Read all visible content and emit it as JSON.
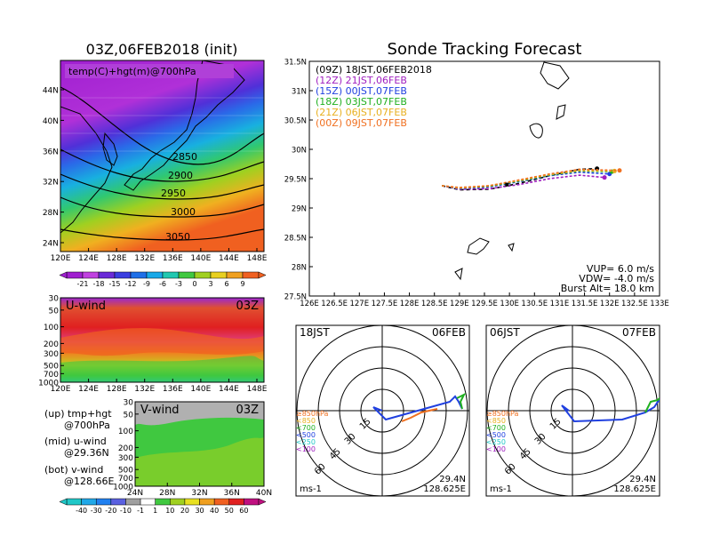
{
  "left": {
    "title": "03Z,06FEB2018 (init)",
    "map_label": "temp(C)+hgt(m)@700hPa",
    "contour_labels": [
      "2850",
      "2900",
      "2950",
      "3000",
      "3050"
    ],
    "lat_ticks": [
      "44N",
      "40N",
      "36N",
      "32N",
      "28N",
      "24N"
    ],
    "lon_ticks": [
      "120E",
      "124E",
      "128E",
      "132E",
      "136E",
      "140E",
      "144E",
      "148E"
    ],
    "temp_colorbar": {
      "labels": [
        "-21",
        "-18",
        "-15",
        "-12",
        "-9",
        "-6",
        "-3",
        "0",
        "3",
        "6",
        "9"
      ],
      "colors": [
        "#a01fd0",
        "#c040e0",
        "#6a2ad8",
        "#3a3ee0",
        "#1f6fe8",
        "#18a8e8",
        "#20c8b0",
        "#40c840",
        "#a0d020",
        "#e8d020",
        "#f0a020",
        "#f06020"
      ]
    },
    "uwind": {
      "label": "U-wind",
      "time": "03Z",
      "p_ticks": [
        "30",
        "50",
        "100",
        "200",
        "300",
        "500",
        "700",
        "1000"
      ],
      "lon_ticks": [
        "120E",
        "124E",
        "128E",
        "132E",
        "136E",
        "140E",
        "144E",
        "148E"
      ]
    },
    "vwind": {
      "label": "V-wind",
      "time": "03Z",
      "p_ticks": [
        "30",
        "50",
        "100",
        "200",
        "300",
        "500",
        "700",
        "1000"
      ],
      "lat_ticks": [
        "24N",
        "28N",
        "32N",
        "36N",
        "40N"
      ]
    },
    "legend": {
      "up_line1": "(up) tmp+hgt",
      "up_line2": "@700hPa",
      "mid_line1": "(mid) u-wind",
      "mid_line2": "@29.36N",
      "bot_line1": "(bot) v-wind",
      "bot_line2": "@128.66E"
    },
    "wind_colorbar": {
      "labels": [
        "-40",
        "-30",
        "-20",
        "-10",
        "-1",
        "1",
        "10",
        "20",
        "30",
        "40",
        "50",
        "60"
      ],
      "colors": [
        "#20c8c8",
        "#20a8e8",
        "#2080f0",
        "#5a60e0",
        "#a0a0a0",
        "#ffffff",
        "#40c840",
        "#a0d020",
        "#e8e020",
        "#f0a020",
        "#f06020",
        "#e02020",
        "#c01080"
      ]
    }
  },
  "chart_data": {
    "type": "line",
    "title": "Sonde Tracking Forecast",
    "xlim": [
      126,
      133
    ],
    "ylim": [
      27.5,
      31.5
    ],
    "x_ticks": [
      "126E",
      "126.5E",
      "127E",
      "127.5E",
      "128E",
      "128.5E",
      "129E",
      "129.5E",
      "130E",
      "130.5E",
      "131E",
      "131.5E",
      "132E",
      "132.5E",
      "133E"
    ],
    "y_ticks": [
      "31.5N",
      "31N",
      "30.5N",
      "30N",
      "29.5N",
      "29N",
      "28.5N",
      "28N",
      "27.5N"
    ],
    "series": [
      {
        "name": "(09Z)  18JST,06FEB2018",
        "color": "#000000",
        "lon": [
          128.65,
          129.0,
          129.6,
          130.2,
          130.8,
          131.4,
          131.75
        ],
        "lat": [
          29.38,
          29.31,
          29.32,
          29.42,
          29.55,
          29.66,
          29.67
        ]
      },
      {
        "name": "(12Z)  21JST,06FEB",
        "color": "#a020c0",
        "lon": [
          128.65,
          129.0,
          129.6,
          130.2,
          130.8,
          131.4,
          131.9
        ],
        "lat": [
          29.38,
          29.32,
          29.33,
          29.4,
          29.5,
          29.56,
          29.52
        ]
      },
      {
        "name": "(15Z)  00JST,07FEB",
        "color": "#2040e0",
        "lon": [
          128.65,
          129.0,
          129.6,
          130.2,
          130.8,
          131.4,
          132.0
        ],
        "lat": [
          29.38,
          29.33,
          29.36,
          29.45,
          29.55,
          29.61,
          29.58
        ]
      },
      {
        "name": "(18Z)  03JST,07FEB",
        "color": "#20b020",
        "lon": [
          128.65,
          129.0,
          129.6,
          130.2,
          130.8,
          131.4,
          132.05
        ],
        "lat": [
          29.38,
          29.34,
          29.37,
          29.46,
          29.56,
          29.63,
          29.62
        ]
      },
      {
        "name": "(21Z)  06JST,07FEB",
        "color": "#e8b020",
        "lon": [
          128.65,
          129.0,
          129.6,
          130.2,
          130.8,
          131.4,
          132.1
        ],
        "lat": [
          29.38,
          29.34,
          29.38,
          29.47,
          29.57,
          29.64,
          29.63
        ]
      },
      {
        "name": "(00Z)  09JST,07FEB",
        "color": "#f07020",
        "lon": [
          128.65,
          129.0,
          129.6,
          130.2,
          130.8,
          131.4,
          132.2
        ],
        "lat": [
          29.38,
          29.35,
          29.38,
          29.48,
          29.58,
          29.66,
          29.64
        ]
      }
    ],
    "params": {
      "vup": "VUP=  6.0  m/s",
      "vdw": "VDW= -4.0  m/s",
      "burst": "Burst Alt= 18.0  km"
    }
  },
  "polar_left": {
    "time": "18JST",
    "date": "06FEB",
    "ring_labels": [
      "15",
      "30",
      "45",
      "60"
    ],
    "legend": [
      "≥850hPa",
      "<850",
      "<700",
      "<500",
      "<250",
      "<100"
    ],
    "legend_colors": [
      "#f07020",
      "#e8b020",
      "#20b020",
      "#2040e0",
      "#20c8c8",
      "#a020c0"
    ],
    "unit": "ms-1",
    "lat": "29.4N",
    "lon": "128.625E"
  },
  "polar_right": {
    "time": "06JST",
    "date": "07FEB",
    "ring_labels": [
      "15",
      "30",
      "45",
      "60"
    ],
    "legend": [
      "≥850hPa",
      "<850",
      "<700",
      "<500",
      "<250",
      "<100"
    ],
    "legend_colors": [
      "#f07020",
      "#e8b020",
      "#20b020",
      "#2040e0",
      "#20c8c8",
      "#a020c0"
    ],
    "unit": "ms-1",
    "lat": "29.4N",
    "lon": "128.625E"
  }
}
